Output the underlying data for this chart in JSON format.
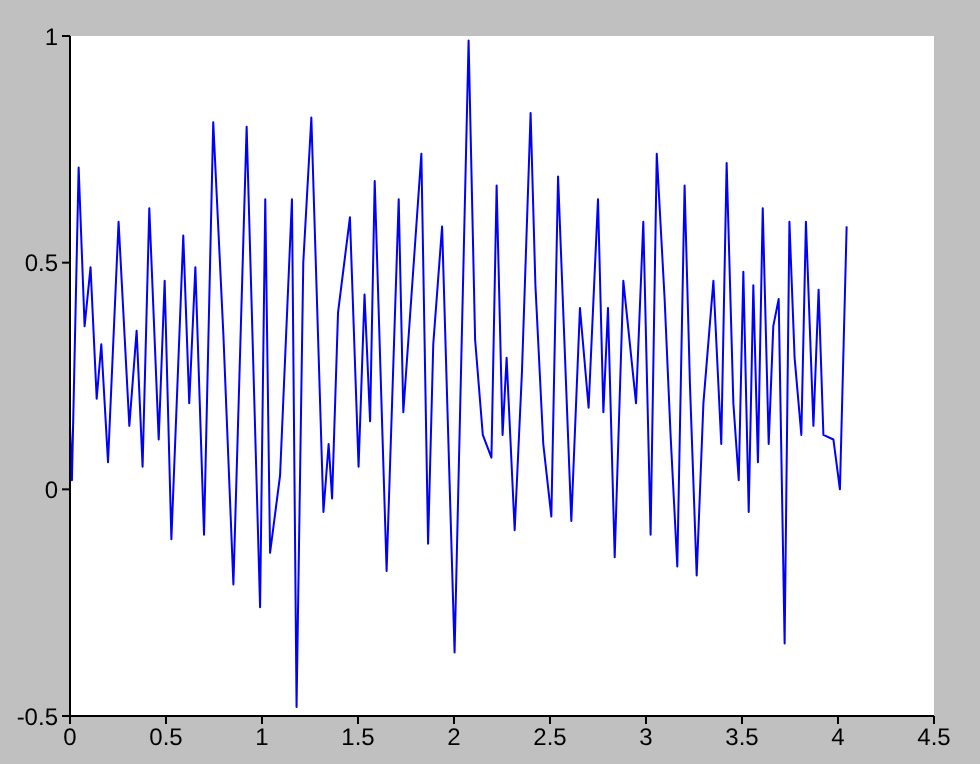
{
  "chart_data": {
    "type": "line",
    "line_style": "solid",
    "xlim": [
      0,
      4.5
    ],
    "xticks": [
      0,
      0.5,
      1,
      1.5,
      2,
      2.5,
      3,
      3.5,
      4,
      4.5
    ],
    "ylim": [
      -0.5,
      1
    ],
    "yticks": [
      -0.5,
      0,
      0.5,
      1
    ],
    "series": [
      {
        "color": "#0000ff",
        "x": [
          0,
          0.01,
          0.045,
          0.076,
          0.107,
          0.139,
          0.163,
          0.198,
          0.253,
          0.309,
          0.347,
          0.378,
          0.413,
          0.462,
          0.493,
          0.528,
          0.59,
          0.621,
          0.653,
          0.698,
          0.746,
          0.799,
          0.851,
          0.92,
          0.99,
          1.017,
          1.042,
          1.094,
          1.156,
          1.18,
          1.215,
          1.257,
          1.32,
          1.347,
          1.365,
          1.396,
          1.458,
          1.503,
          1.534,
          1.563,
          1.587,
          1.649,
          1.712,
          1.736,
          1.83,
          1.865,
          1.892,
          1.938,
          2.003,
          2.076,
          2.11,
          2.15,
          2.195,
          2.222,
          2.253,
          2.274,
          2.316,
          2.354,
          2.399,
          2.424,
          2.465,
          2.507,
          2.542,
          2.611,
          2.656,
          2.701,
          2.75,
          2.778,
          2.802,
          2.837,
          2.882,
          2.948,
          2.986,
          3.024,
          3.056,
          3.097,
          3.128,
          3.163,
          3.201,
          3.229,
          3.264,
          3.299,
          3.351,
          3.392,
          3.42,
          3.455,
          3.483,
          3.507,
          3.535,
          3.559,
          3.583,
          3.608,
          3.639,
          3.663,
          3.691,
          3.722,
          3.747,
          3.774,
          3.809,
          3.833,
          3.872,
          3.899,
          3.924,
          3.976,
          4.01,
          4.045
        ],
        "values": [
          0.14,
          0.02,
          0.71,
          0.36,
          0.49,
          0.2,
          0.32,
          0.06,
          0.59,
          0.14,
          0.35,
          0.05,
          0.62,
          0.11,
          0.46,
          -0.11,
          0.56,
          0.19,
          0.49,
          -0.1,
          0.81,
          0.34,
          -0.21,
          0.8,
          -0.26,
          0.64,
          -0.14,
          0.03,
          0.64,
          -0.48,
          0.5,
          0.82,
          -0.05,
          0.1,
          -0.02,
          0.39,
          0.6,
          0.05,
          0.43,
          0.15,
          0.68,
          -0.18,
          0.64,
          0.17,
          0.74,
          -0.12,
          0.32,
          0.58,
          -0.36,
          0.99,
          0.33,
          0.12,
          0.07,
          0.67,
          0.12,
          0.29,
          -0.09,
          0.26,
          0.83,
          0.45,
          0.1,
          -0.06,
          0.69,
          -0.07,
          0.4,
          0.18,
          0.64,
          0.17,
          0.4,
          -0.15,
          0.46,
          0.19,
          0.59,
          -0.1,
          0.74,
          0.42,
          0.12,
          -0.17,
          0.67,
          0.23,
          -0.19,
          0.19,
          0.46,
          0.1,
          0.72,
          0.19,
          0.02,
          0.48,
          -0.05,
          0.45,
          0.06,
          0.62,
          0.1,
          0.36,
          0.42,
          -0.34,
          0.59,
          0.29,
          0.12,
          0.59,
          0.14,
          0.44,
          0.12,
          0.11,
          0.0,
          0.58
        ]
      }
    ]
  }
}
